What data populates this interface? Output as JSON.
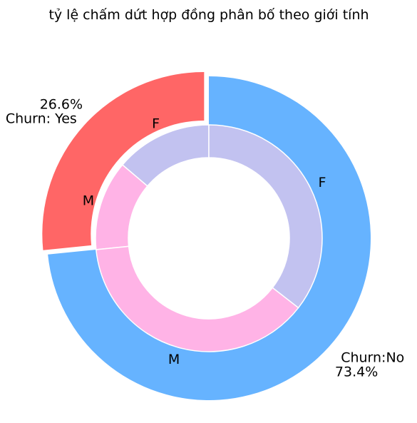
{
  "chart_data": {
    "type": "pie",
    "variant": "nested-donut",
    "title": "tỷ lệ chấm dứt hợp đồng phân bố theo giới tính",
    "outer": {
      "categories": [
        "Churn: Yes",
        "Churn:No"
      ],
      "values": [
        26.6,
        73.4
      ],
      "percent_labels": [
        "26.6%",
        "73.4%"
      ],
      "colors": [
        "#ff6666",
        "#66b3ff"
      ]
    },
    "inner": {
      "categories": [
        "F",
        "M",
        "M",
        "F"
      ],
      "parent": [
        "Churn: Yes",
        "Churn: Yes",
        "Churn:No",
        "Churn:No"
      ],
      "values": [
        13.8,
        12.8,
        37.9,
        35.5
      ],
      "colors": [
        "#c2c2f0",
        "#ffb3e6",
        "#ffb3e6",
        "#c2c2f0"
      ]
    }
  }
}
